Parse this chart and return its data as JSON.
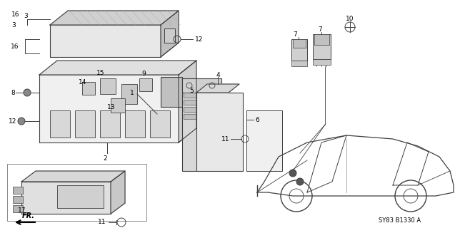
{
  "diagram_code": "SY83 B1330 A",
  "background_color": "#ffffff",
  "line_color": "#404040",
  "text_color": "#000000",
  "fig_width": 6.37,
  "fig_height": 3.2,
  "dpi": 100
}
